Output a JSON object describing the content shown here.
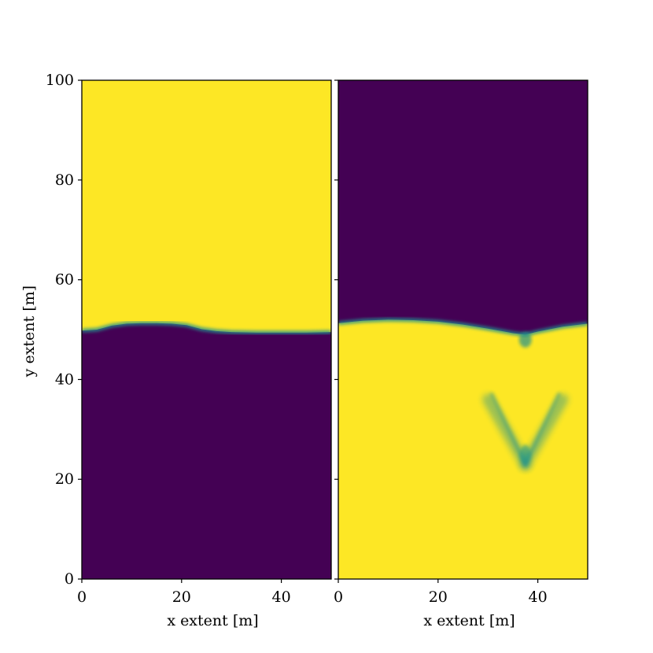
{
  "chart_data": [
    {
      "type": "heatmap",
      "panel": "left",
      "xlabel": "x extent [m]",
      "ylabel": "y extent [m]",
      "xlim": [
        0,
        50
      ],
      "ylim": [
        0,
        100
      ],
      "xticks": [
        0,
        20,
        40
      ],
      "yticks": [
        0,
        20,
        40,
        60,
        80,
        100
      ],
      "colors": {
        "high": "#fde725",
        "low": "#440154",
        "mid": "#21918c"
      },
      "regions": [
        {
          "value": "high",
          "location": "above interface"
        },
        {
          "value": "low",
          "location": "below interface"
        }
      ],
      "interface": {
        "x": [
          0,
          3,
          6,
          9,
          12,
          15,
          18,
          21,
          24,
          27,
          30,
          35,
          40,
          45,
          50
        ],
        "y": [
          49.8,
          50.0,
          50.8,
          51.2,
          51.3,
          51.3,
          51.2,
          50.9,
          50.1,
          49.7,
          49.5,
          49.4,
          49.4,
          49.4,
          49.5
        ]
      }
    },
    {
      "type": "heatmap",
      "panel": "right",
      "xlabel": "x extent [m]",
      "ylabel": "",
      "xlim": [
        0,
        50
      ],
      "ylim": [
        0,
        100
      ],
      "xticks": [
        0,
        20,
        40
      ],
      "yticks": [
        0,
        20,
        40,
        60,
        80,
        100
      ],
      "colors": {
        "high": "#fde725",
        "low": "#440154",
        "mid": "#21918c"
      },
      "regions": [
        {
          "value": "low",
          "location": "above interface"
        },
        {
          "value": "high",
          "location": "below interface"
        }
      ],
      "interface": {
        "x": [
          0,
          5,
          10,
          15,
          20,
          25,
          30,
          35,
          37.5,
          40,
          45,
          50
        ],
        "y": [
          51.3,
          51.8,
          52.0,
          51.9,
          51.6,
          51.0,
          50.2,
          49.3,
          49.0,
          49.6,
          50.6,
          51.2
        ]
      },
      "finger": {
        "x": 37.5,
        "y_top": 49,
        "y_tip": 21,
        "arms_spread_x": 7.5,
        "arms_top_y": 36
      }
    }
  ]
}
